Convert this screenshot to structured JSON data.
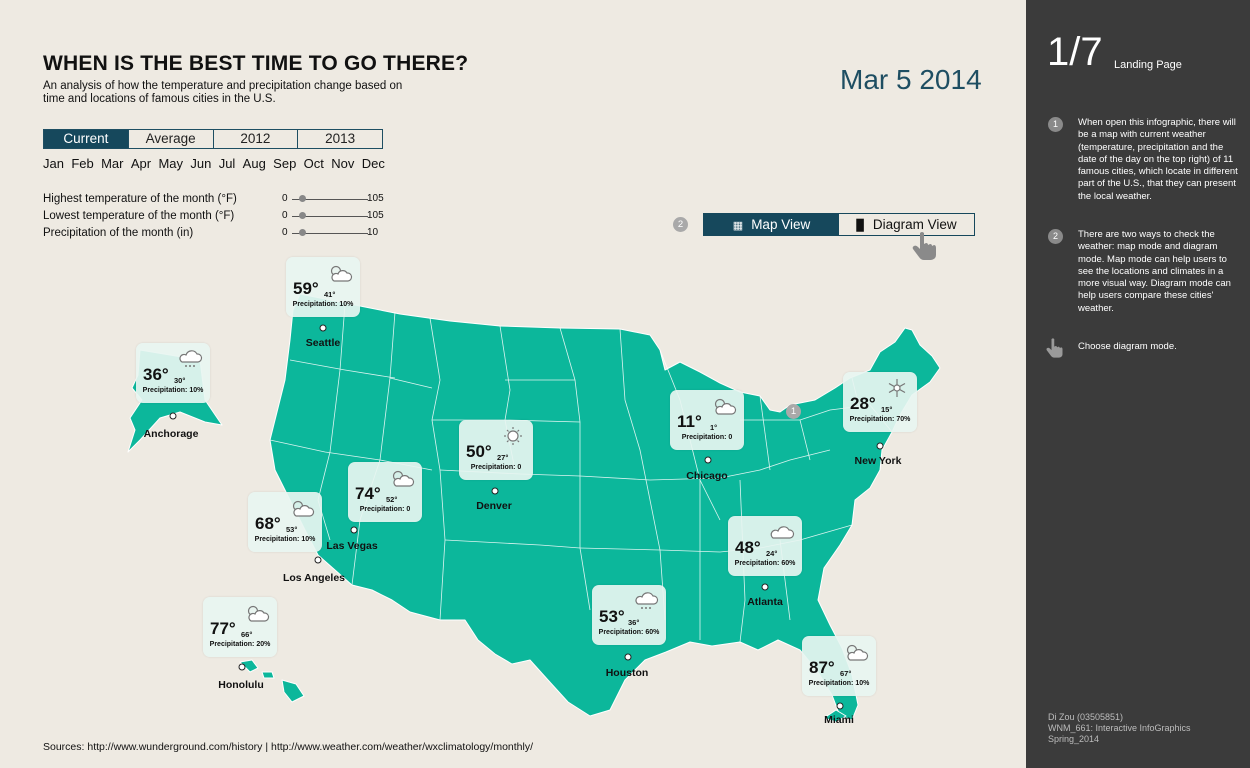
{
  "header": {
    "title": "WHEN IS THE BEST TIME TO GO THERE?",
    "subtitle": "An analysis of how the temperature and precipitation change based on time and locations of famous cities in the U.S.",
    "date": "Mar 5 2014"
  },
  "tabs": [
    {
      "label": "Current",
      "active": true
    },
    {
      "label": "Average",
      "active": false
    },
    {
      "label": "2012",
      "active": false
    },
    {
      "label": "2013",
      "active": false
    }
  ],
  "months": [
    "Jan",
    "Feb",
    "Mar",
    "Apr",
    "May",
    "Jun",
    "Jul",
    "Aug",
    "Sep",
    "Oct",
    "Nov",
    "Dec"
  ],
  "filters": [
    {
      "label": "Highest temperature of the month (°F)",
      "min": "0",
      "max": "105"
    },
    {
      "label": "Lowest temperature of the month (°F)",
      "min": "0",
      "max": "105"
    },
    {
      "label": "Precipitation of the month (in)",
      "min": "0",
      "max": "10"
    }
  ],
  "view_toggle": {
    "step": "2",
    "map_label": "Map View",
    "diagram_label": "Diagram View",
    "active": "map"
  },
  "map_step": "1",
  "cities": [
    {
      "name": "Seattle",
      "high": "59°",
      "low": "41°",
      "precip": "Precipitation: 10%",
      "icon": "partly-cloudy-icon"
    },
    {
      "name": "Anchorage",
      "high": "36°",
      "low": "30°",
      "precip": "Precipitation: 10%",
      "icon": "snow-cloud-icon"
    },
    {
      "name": "Los Angeles",
      "high": "68°",
      "low": "53°",
      "precip": "Precipitation: 10%",
      "icon": "partly-cloudy-icon"
    },
    {
      "name": "Las Vegas",
      "high": "74°",
      "low": "52°",
      "precip": "Precipitation: 0",
      "icon": "partly-cloudy-icon"
    },
    {
      "name": "Denver",
      "high": "50°",
      "low": "27°",
      "precip": "Precipitation: 0",
      "icon": "sun-icon"
    },
    {
      "name": "Chicago",
      "high": "11°",
      "low": "1°",
      "precip": "Precipitation: 0",
      "icon": "partly-cloudy-icon"
    },
    {
      "name": "New York",
      "high": "28°",
      "low": "15°",
      "precip": "Precipitation: 70%",
      "icon": "snowflake-icon"
    },
    {
      "name": "Atlanta",
      "high": "48°",
      "low": "24°",
      "precip": "Precipitation: 60%",
      "icon": "cloud-icon"
    },
    {
      "name": "Houston",
      "high": "53°",
      "low": "36°",
      "precip": "Precipitation: 60%",
      "icon": "snow-cloud-icon"
    },
    {
      "name": "Honolulu",
      "high": "77°",
      "low": "66°",
      "precip": "Precipitation: 20%",
      "icon": "partly-cloudy-icon"
    },
    {
      "name": "Miami",
      "high": "87°",
      "low": "67°",
      "precip": "Precipitation: 10%",
      "icon": "partly-cloudy-icon"
    }
  ],
  "sources": "Sources: http://www.wunderground.com/history  |  http://www.weather.com/weather/wxclimatology/monthly/",
  "sidebar": {
    "page_number": "1/7",
    "page_name": "Landing Page",
    "steps": [
      {
        "num": "1",
        "text": "When open this infographic, there will be a map with current weather (temperature, precipitation and the date of the day on the top right) of 11 famous cities, which locate in different part of the U.S., that they can present the local weather."
      },
      {
        "num": "2",
        "text": "There are two ways to check the weather: map mode and diagram mode. Map mode can help users to see the locations and climates in a more visual way. Diagram mode can help users compare these cities' weather."
      },
      {
        "num": "",
        "text": "Choose diagram mode."
      }
    ],
    "credits": [
      "Di Zou (03505851)",
      "WNM_661: Interactive InfoGraphics",
      "Spring_2014"
    ]
  },
  "colors": {
    "map_fill": "#0CB79B",
    "accent": "#16485C",
    "sidebar": "#3B3B3B",
    "background": "#EEEAE2"
  }
}
